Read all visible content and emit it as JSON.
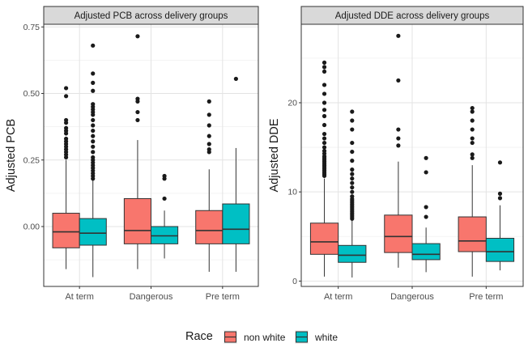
{
  "legend": {
    "title": "Race",
    "items": [
      {
        "label": "non white",
        "color": "#F8766D"
      },
      {
        "label": "white",
        "color": "#00BFC4"
      }
    ]
  },
  "chart_data": [
    {
      "type": "boxplot",
      "title": "Adjusted PCB across delivery groups",
      "xlabel": "",
      "ylabel": "Adjusted PCB",
      "categories": [
        "At term",
        "Dangerous",
        "Pre term"
      ],
      "ylim": [
        -0.225,
        0.76
      ],
      "yticks": [
        0.0,
        0.25,
        0.5,
        0.75
      ],
      "ytick_labels": [
        "0.00",
        "0.25",
        "0.50",
        "0.75"
      ],
      "grid": true,
      "series": [
        {
          "name": "non white",
          "color": "#F8766D",
          "boxes": [
            {
              "min": -0.16,
              "q1": -0.08,
              "median": -0.02,
              "q3": 0.05,
              "max": 0.25,
              "outliers": [
                0.26,
                0.27,
                0.28,
                0.29,
                0.3,
                0.31,
                0.32,
                0.33,
                0.35,
                0.36,
                0.37,
                0.39,
                0.4,
                0.49,
                0.52
              ]
            },
            {
              "min": -0.16,
              "q1": -0.065,
              "median": -0.015,
              "q3": 0.105,
              "max": 0.325,
              "outliers": [
                0.4,
                0.43,
                0.47,
                0.48,
                0.715
              ]
            },
            {
              "min": -0.17,
              "q1": -0.065,
              "median": -0.015,
              "q3": 0.06,
              "max": 0.215,
              "outliers": [
                0.28,
                0.29,
                0.31,
                0.34,
                0.38,
                0.42,
                0.47
              ]
            }
          ]
        },
        {
          "name": "white",
          "color": "#00BFC4",
          "boxes": [
            {
              "min": -0.19,
              "q1": -0.07,
              "median": -0.025,
              "q3": 0.03,
              "max": 0.175,
              "outliers": [
                0.18,
                0.19,
                0.2,
                0.21,
                0.22,
                0.23,
                0.24,
                0.25,
                0.26,
                0.28,
                0.3,
                0.32,
                0.34,
                0.36,
                0.38,
                0.4,
                0.42,
                0.43,
                0.44,
                0.45,
                0.46,
                0.51,
                0.54,
                0.575,
                0.68
              ]
            },
            {
              "min": -0.12,
              "q1": -0.065,
              "median": -0.035,
              "q3": 0.0,
              "max": 0.06,
              "outliers": [
                0.105,
                0.18,
                0.19
              ]
            },
            {
              "min": -0.17,
              "q1": -0.065,
              "median": -0.01,
              "q3": 0.085,
              "max": 0.295,
              "outliers": [
                0.555
              ]
            }
          ]
        }
      ]
    },
    {
      "type": "boxplot",
      "title": "Adjusted DDE across delivery groups",
      "xlabel": "",
      "ylabel": "Adjusted DDE",
      "categories": [
        "At term",
        "Dangerous",
        "Pre term"
      ],
      "ylim": [
        -0.6,
        28.8
      ],
      "yticks": [
        0,
        10,
        20
      ],
      "ytick_labels": [
        "0",
        "10",
        "20"
      ],
      "grid": true,
      "series": [
        {
          "name": "non white",
          "color": "#F8766D",
          "boxes": [
            {
              "min": 0.5,
              "q1": 3.0,
              "median": 4.4,
              "q3": 6.5,
              "max": 11.5,
              "outliers": [
                11.8,
                12.0,
                12.2,
                12.4,
                12.6,
                12.8,
                13.0,
                13.2,
                13.4,
                13.6,
                13.8,
                14.0,
                14.3,
                14.6,
                15.0,
                15.5,
                16.0,
                16.5,
                17.5,
                18.5,
                19.2,
                20.0,
                21.0,
                22.0,
                23.5,
                24.0,
                24.5
              ]
            },
            {
              "min": 1.5,
              "q1": 3.2,
              "median": 5.0,
              "q3": 7.4,
              "max": 13.4,
              "outliers": [
                15.2,
                16.0,
                17.0,
                22.5,
                27.5
              ]
            },
            {
              "min": 0.5,
              "q1": 3.3,
              "median": 4.5,
              "q3": 7.2,
              "max": 13.0,
              "outliers": [
                13.8,
                14.2,
                15.5,
                16.0,
                17.0,
                18.0,
                19.0,
                19.4
              ]
            }
          ]
        },
        {
          "name": "white",
          "color": "#00BFC4",
          "boxes": [
            {
              "min": 0.4,
              "q1": 2.1,
              "median": 2.9,
              "q3": 4.0,
              "max": 6.8,
              "outliers": [
                7.0,
                7.2,
                7.4,
                7.6,
                7.8,
                8.0,
                8.2,
                8.4,
                8.6,
                8.8,
                9.0,
                9.2,
                9.5,
                10.0,
                10.5,
                11.0,
                11.5,
                12.0,
                12.5,
                13.5,
                14.5,
                15.5,
                17.0,
                18.0,
                19.0
              ]
            },
            {
              "min": 1.0,
              "q1": 2.4,
              "median": 3.0,
              "q3": 4.2,
              "max": 6.0,
              "outliers": [
                7.2,
                8.3,
                12.2,
                13.8
              ]
            },
            {
              "min": 1.2,
              "q1": 2.2,
              "median": 3.3,
              "q3": 4.8,
              "max": 8.5,
              "outliers": [
                9.3,
                9.8,
                13.3
              ]
            }
          ]
        }
      ]
    }
  ]
}
